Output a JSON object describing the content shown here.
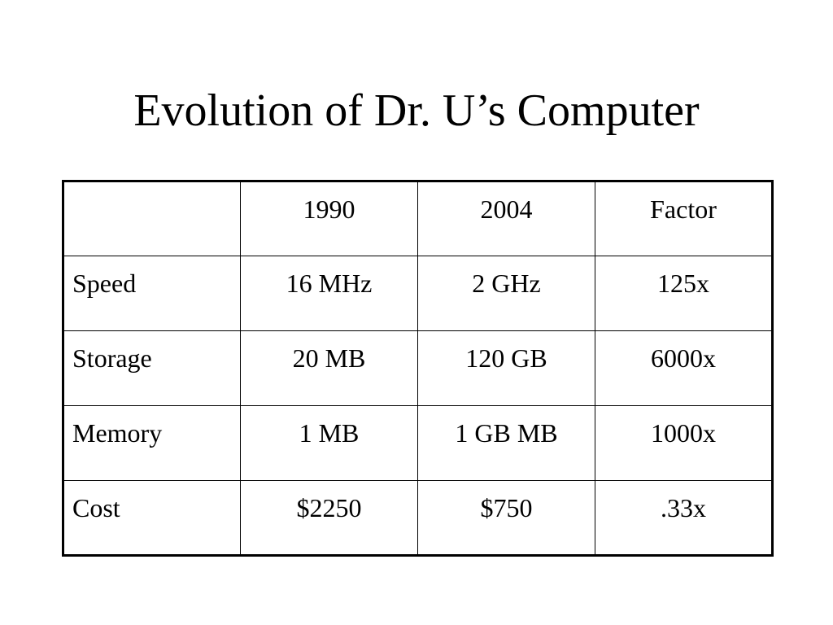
{
  "slide": {
    "title": "Evolution of Dr. U’s Computer"
  },
  "table": {
    "headers": [
      "",
      "1990",
      "2004",
      "Factor"
    ],
    "rows": [
      [
        "Speed",
        "16 MHz",
        "2 GHz",
        "125x"
      ],
      [
        "Storage",
        "20 MB",
        "120 GB",
        "6000x"
      ],
      [
        "Memory",
        "1 MB",
        "1 GB MB",
        "1000x"
      ],
      [
        "Cost",
        "$2250",
        "$750",
        ".33x"
      ]
    ]
  }
}
